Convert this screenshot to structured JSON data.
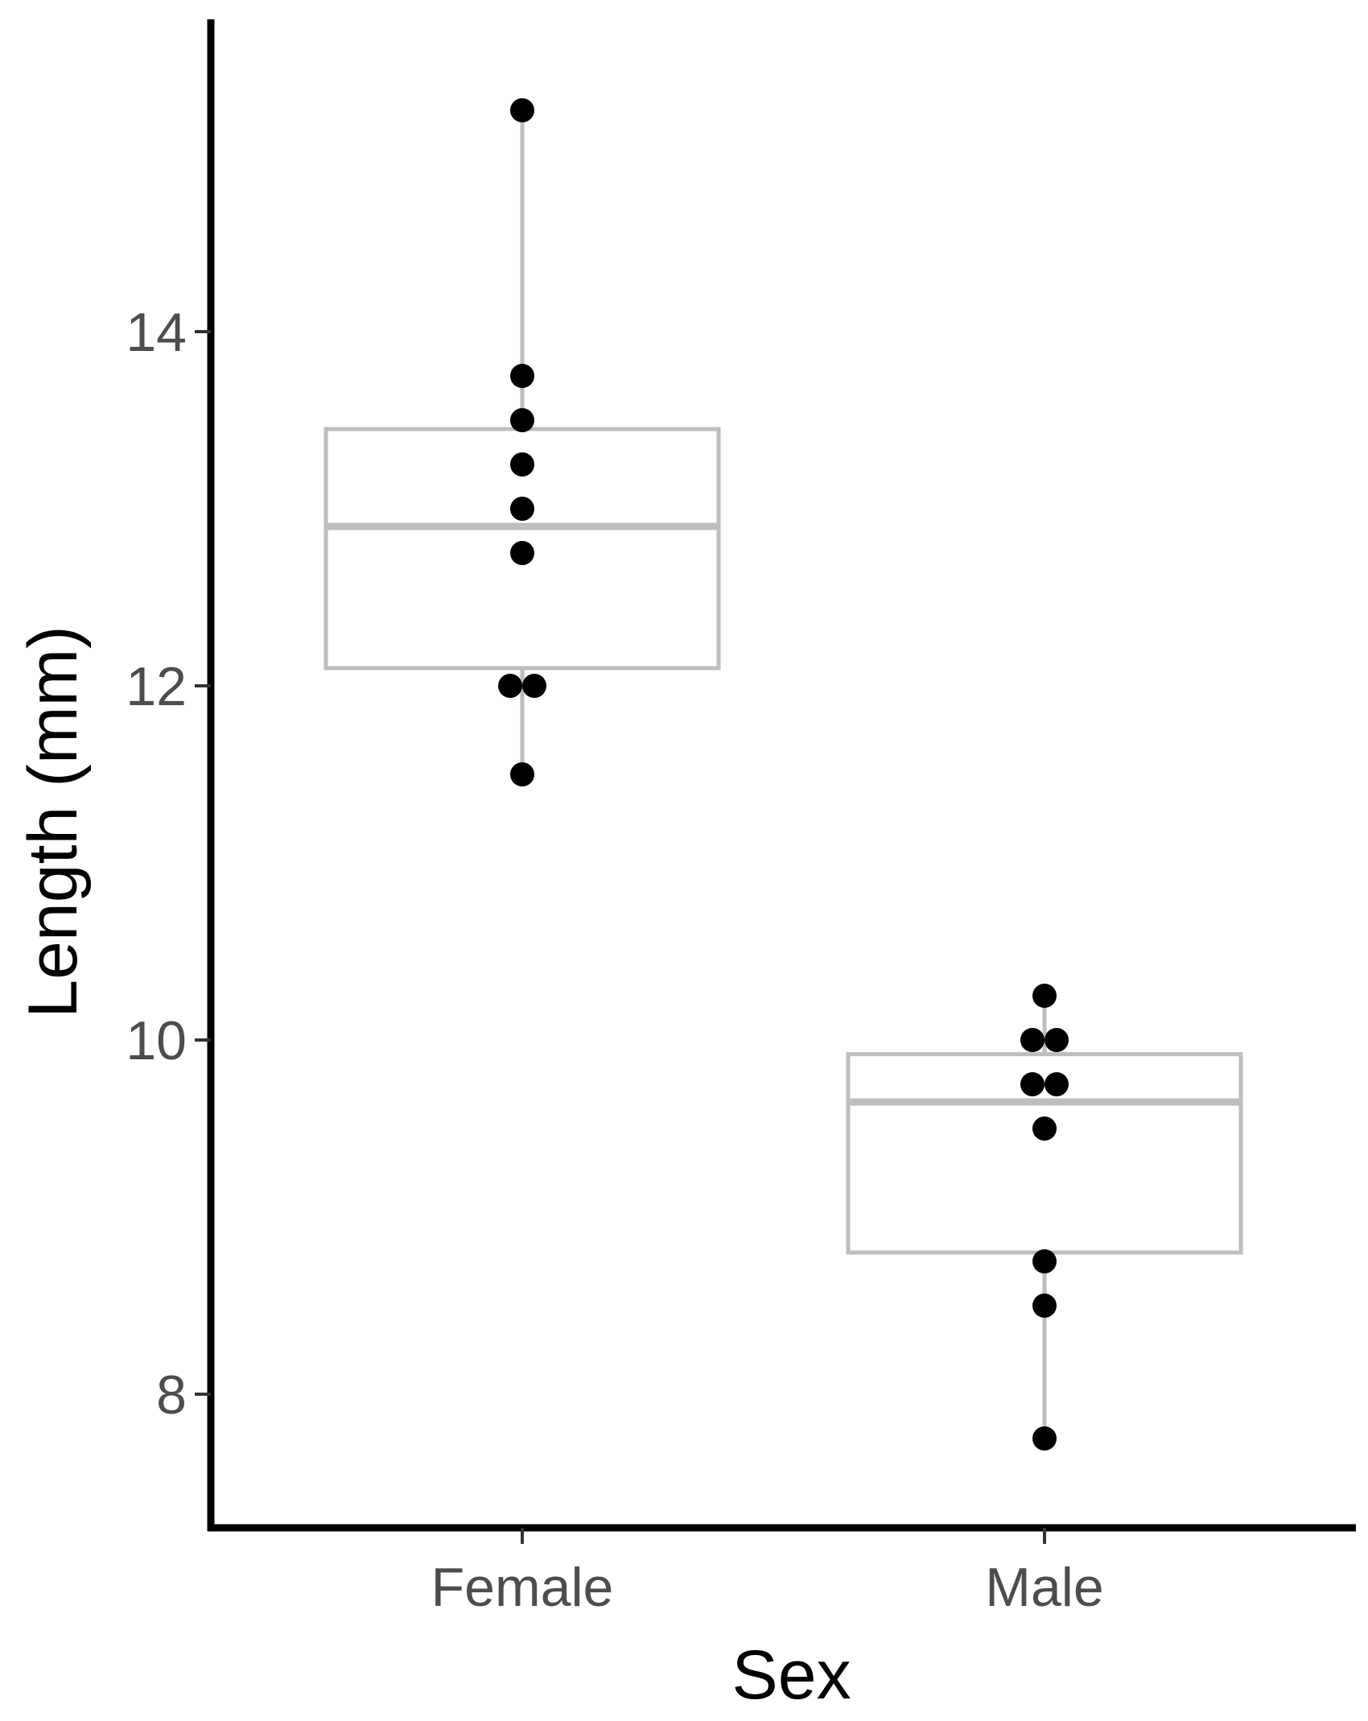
{
  "chart_data": {
    "type": "box",
    "xlabel": "Sex",
    "ylabel": "Length (mm)",
    "categories": [
      "Female",
      "Male"
    ],
    "ylim": [
      7.25,
      15.75
    ],
    "yticks": [
      8,
      10,
      12,
      14
    ],
    "ytick_labels": [
      "8",
      "10",
      "12",
      "14"
    ],
    "boxes": [
      {
        "category": "Female",
        "whisker_low": 11.5,
        "q1": 12.1,
        "median": 12.9,
        "q3": 13.45,
        "whisker_high": 15.25
      },
      {
        "category": "Male",
        "whisker_low": 7.75,
        "q1": 8.8,
        "median": 9.65,
        "q3": 9.92,
        "whisker_high": 10.25
      }
    ],
    "points": [
      {
        "category": "Female",
        "values": [
          15.25,
          13.75,
          13.5,
          13.25,
          13.0,
          12.75,
          12.0,
          12.0,
          11.5
        ]
      },
      {
        "category": "Male",
        "values": [
          10.25,
          10.0,
          10.0,
          9.75,
          9.75,
          9.5,
          8.75,
          8.5,
          7.75
        ]
      }
    ],
    "colors": {
      "box": "#bebebe",
      "point": "#000000",
      "axis": "#000000",
      "tick_label": "#4d4d4d"
    },
    "grid": false,
    "legend": "none"
  }
}
